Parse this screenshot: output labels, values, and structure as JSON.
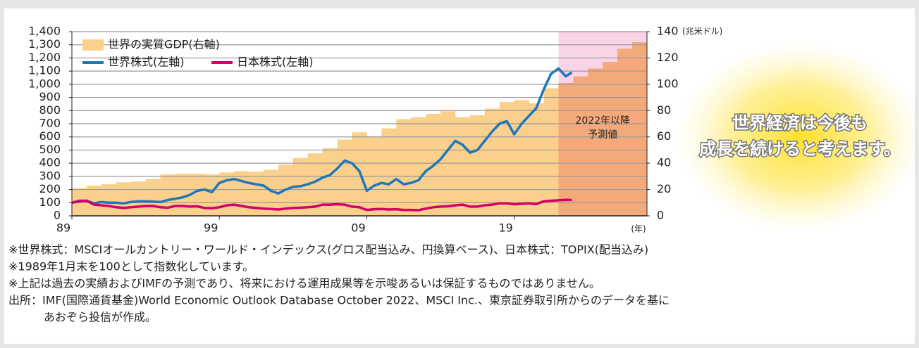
{
  "chart_data": {
    "type": "line",
    "xlim": [
      1989,
      2028
    ],
    "xticks": [
      {
        "value": 1989,
        "label": "89"
      },
      {
        "value": 1999,
        "label": "99"
      },
      {
        "value": 2009,
        "label": "09"
      },
      {
        "value": 2019,
        "label": "19"
      }
    ],
    "x_unit": "(年)",
    "ylim": [
      0,
      1400
    ],
    "yticks": [
      0,
      100,
      200,
      300,
      400,
      500,
      600,
      700,
      800,
      900,
      {
        "value": 1000,
        "label": "1,000"
      },
      {
        "value": 1100,
        "label": "1,100"
      },
      {
        "value": 1200,
        "label": "1,200"
      },
      {
        "value": 1300,
        "label": "1,300"
      },
      {
        "value": 1400,
        "label": "1,400"
      }
    ],
    "y2lim": [
      0,
      140
    ],
    "y2ticks": [
      0,
      20,
      40,
      60,
      80,
      100,
      120,
      140
    ],
    "y2_unit": "(兆米ドル)",
    "grid": true,
    "legend": "upper left",
    "forecast_start": 2022,
    "forecast_shade": "#f9d3e6",
    "forecast_label": [
      "2022年以降",
      "予測値"
    ],
    "x": [
      1989.0,
      1989.5,
      1990.0,
      1990.5,
      1991.0,
      1991.5,
      1992.0,
      1992.5,
      1993.0,
      1993.5,
      1994.0,
      1994.5,
      1995.0,
      1995.5,
      1996.0,
      1996.5,
      1997.0,
      1997.5,
      1998.0,
      1998.5,
      1999.0,
      1999.5,
      2000.0,
      2000.5,
      2001.0,
      2001.5,
      2002.0,
      2002.5,
      2003.0,
      2003.5,
      2004.0,
      2004.5,
      2005.0,
      2005.5,
      2006.0,
      2006.5,
      2007.0,
      2007.5,
      2008.0,
      2008.5,
      2009.0,
      2009.5,
      2010.0,
      2010.5,
      2011.0,
      2011.5,
      2012.0,
      2012.5,
      2013.0,
      2013.5,
      2014.0,
      2014.5,
      2015.0,
      2015.5,
      2016.0,
      2016.5,
      2017.0,
      2017.5,
      2018.0,
      2018.5,
      2019.0,
      2019.5,
      2020.0,
      2020.5,
      2021.0,
      2021.5,
      2022.0,
      2022.5,
      2022.9
    ],
    "series": [
      {
        "name": "世界の実質GDP(右軸)",
        "axis": "y2",
        "style": "step-area",
        "color": "#fbd08c",
        "forecast_color": "#f4a97a",
        "x": [
          1989,
          1990,
          1991,
          1992,
          1993,
          1994,
          1995,
          1996,
          1997,
          1998,
          1999,
          2000,
          2001,
          2002,
          2003,
          2004,
          2005,
          2006,
          2007,
          2008,
          2009,
          2010,
          2011,
          2012,
          2013,
          2014,
          2015,
          2016,
          2017,
          2018,
          2019,
          2020,
          2021,
          2022,
          2023,
          2024,
          2025,
          2026,
          2027
        ],
        "values": [
          21,
          23,
          24,
          25.5,
          26,
          28,
          31.5,
          32,
          32,
          31.5,
          33,
          34,
          33.5,
          35,
          39,
          44,
          47.5,
          51.5,
          58,
          63.5,
          60.5,
          66.5,
          73.5,
          75,
          77.5,
          79.5,
          75,
          76.5,
          81.5,
          86.5,
          88,
          85.5,
          97,
          101,
          106,
          112,
          117,
          127,
          132
        ]
      },
      {
        "name": "世界株式(左軸)",
        "style": "line",
        "color": "#1f77bb",
        "values": [
          100,
          115,
          115,
          95,
          105,
          100,
          100,
          95,
          105,
          110,
          110,
          108,
          105,
          120,
          130,
          140,
          160,
          190,
          200,
          180,
          250,
          270,
          280,
          265,
          250,
          240,
          230,
          190,
          170,
          200,
          220,
          225,
          240,
          260,
          290,
          310,
          360,
          420,
          400,
          340,
          190,
          230,
          250,
          240,
          280,
          240,
          250,
          270,
          340,
          380,
          430,
          500,
          570,
          540,
          480,
          500,
          570,
          640,
          700,
          720,
          620,
          700,
          760,
          820,
          960,
          1080,
          1120,
          1060,
          1090
        ]
      },
      {
        "name": "日本株式(左軸)",
        "style": "line",
        "color": "#d4006a",
        "values": [
          100,
          110,
          115,
          85,
          80,
          75,
          65,
          60,
          65,
          70,
          75,
          75,
          65,
          62,
          75,
          75,
          70,
          72,
          60,
          58,
          65,
          80,
          85,
          75,
          65,
          60,
          55,
          52,
          48,
          55,
          60,
          62,
          65,
          70,
          85,
          85,
          88,
          85,
          70,
          65,
          45,
          50,
          52,
          48,
          50,
          45,
          45,
          42,
          55,
          65,
          70,
          72,
          80,
          85,
          70,
          70,
          80,
          85,
          95,
          95,
          88,
          92,
          95,
          90,
          110,
          115,
          118,
          122,
          120
        ]
      }
    ]
  },
  "callout": [
    "世界経済は今後も",
    "成長を続けると考えます。"
  ],
  "notes": [
    "※世界株式：MSCIオールカントリー・ワールド・インデックス(グロス配当込み、円換算ベース)、日本株式：TOPIX(配当込み)",
    "※1989年1月末を100として指数化しています。",
    "※上記は過去の実績およびIMFの予測であり、将来における運用成果等を示唆あるいは保証するものではありません。",
    "出所：IMF(国際通貨基金)World Economic Outlook Database October 2022、MSCI Inc.、東京証券取引所からのデータを基に",
    "あおぞら投信が作成。"
  ]
}
